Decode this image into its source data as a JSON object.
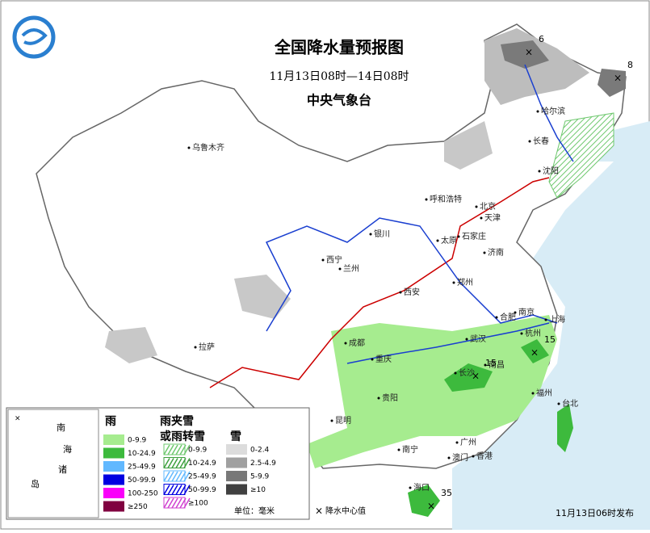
{
  "header": {
    "title": "全国降水量预报图",
    "subtitle": "11月13日08时—14日08时",
    "issuer": "中央气象台"
  },
  "cities": [
    "乌鲁木齐",
    "哈尔滨",
    "长春",
    "沈阳",
    "呼和浩特",
    "北京",
    "天津",
    "银川",
    "石家庄",
    "太原",
    "济南",
    "西宁",
    "兰州",
    "西安",
    "郑州",
    "南京",
    "合肥",
    "上海",
    "武汉",
    "杭州",
    "成都",
    "重庆",
    "长沙",
    "南昌",
    "福州",
    "台北",
    "贵阳",
    "昆明",
    "南宁",
    "广州",
    "香港",
    "澳门",
    "海口",
    "拉萨"
  ],
  "centers": [
    6,
    8,
    15,
    15,
    35
  ],
  "inset": [
    "南",
    "海",
    "诸",
    "岛"
  ],
  "legend": {
    "rain_title": "雨",
    "sleet_title": [
      "雨夹雪",
      "或雨转雪"
    ],
    "snow_title": "雪",
    "rain": [
      "0-9.9",
      "10-24.9",
      "25-49.9",
      "50-99.9",
      "100-250",
      "≥250"
    ],
    "sleet": [
      "0-9.9",
      "10-24.9",
      "25-49.9",
      "50-99.9",
      "≥100"
    ],
    "snow": [
      "0-2.4",
      "2.5-4.9",
      "5-9.9",
      "≥10"
    ],
    "unit": "单位：毫米",
    "center_label": "降水中心值"
  },
  "footer": "11月13日06时发布"
}
